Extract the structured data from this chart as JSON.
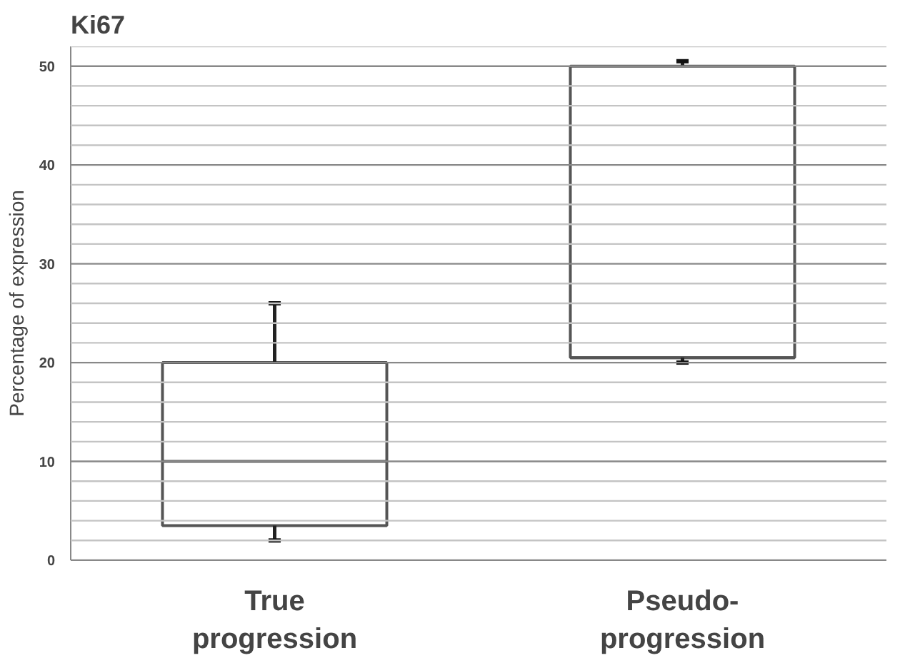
{
  "chart_data": {
    "type": "box",
    "title": "Ki67",
    "ylabel": "Percentage of expression",
    "categories": [
      "True\nprogression",
      "Pseudo-\nprogression"
    ],
    "boxes": [
      {
        "low": 2,
        "q1": 3.5,
        "median": 10,
        "q3": 20,
        "high": 26
      },
      {
        "low": 20,
        "q1": 20.5,
        "median": 20.5,
        "q3": 50,
        "high": 50.5
      }
    ],
    "color": "#555555",
    "ylim": [
      0,
      52
    ],
    "yticks": [
      0,
      {
        "value": 2,
        "label": null
      },
      {
        "value": 4,
        "label": null
      },
      {
        "value": 6,
        "label": null
      },
      {
        "value": 8,
        "label": null
      },
      10,
      {
        "value": 12,
        "label": null
      },
      {
        "value": 14,
        "label": null
      },
      {
        "value": 16,
        "label": null
      },
      {
        "value": 18,
        "label": null
      },
      20,
      {
        "value": 22,
        "label": null
      },
      {
        "value": 24,
        "label": null
      },
      {
        "value": 26,
        "label": null
      },
      {
        "value": 28,
        "label": null
      },
      30,
      {
        "value": 32,
        "label": null
      },
      {
        "value": 34,
        "label": null
      },
      {
        "value": 36,
        "label": null
      },
      {
        "value": 38,
        "label": null
      },
      40,
      {
        "value": 42,
        "label": null
      },
      {
        "value": 44,
        "label": null
      },
      {
        "value": 46,
        "label": null
      },
      {
        "value": 48,
        "label": null
      },
      50,
      {
        "value": 52,
        "label": null
      }
    ],
    "grid": "y"
  }
}
